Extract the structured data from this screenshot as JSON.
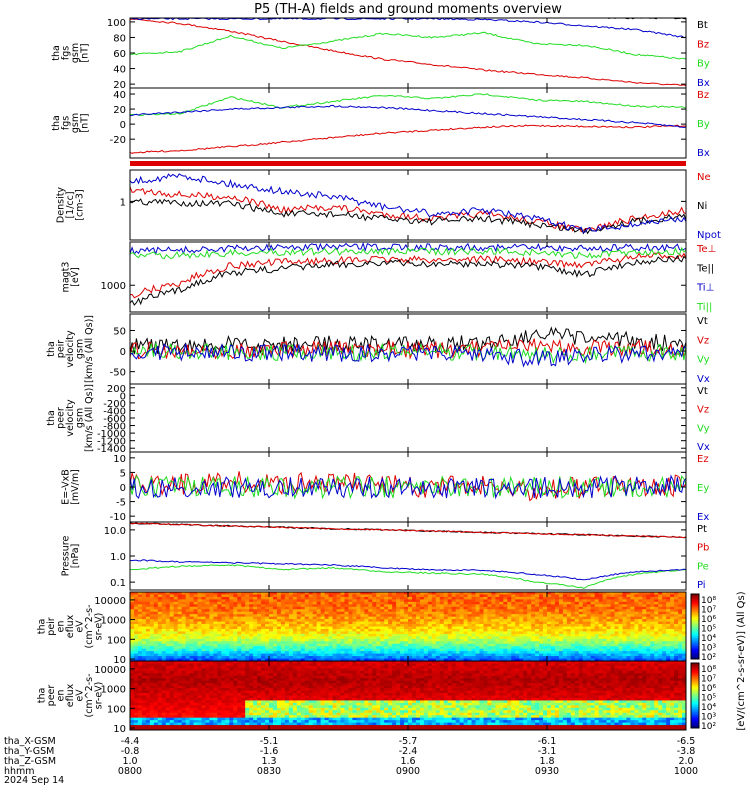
{
  "title": "P5 (TH-A) fields and ground moments overview",
  "colors": {
    "red": "#dd0000",
    "green": "#22dd22",
    "blue": "#0000cc",
    "black": "#000000"
  },
  "chart_data": [
    {
      "type": "line",
      "id": "fgs_gsm",
      "ylabel": [
        "tha",
        "fgs",
        "gsm",
        "[nT]"
      ],
      "yticks": [
        "100",
        "80",
        "60",
        "40",
        "20"
      ],
      "ylim": [
        15,
        105
      ],
      "series": [
        {
          "name": "Bt",
          "color": "black",
          "values": [
            115,
            112,
            110,
            108,
            108,
            108,
            107,
            107,
            106,
            106,
            105,
            105
          ]
        },
        {
          "name": "Bz",
          "color": "red",
          "values": [
            104,
            98,
            88,
            75,
            63,
            52,
            45,
            38,
            33,
            28,
            22,
            18
          ]
        },
        {
          "name": "By",
          "color": "green",
          "values": [
            58,
            62,
            82,
            66,
            75,
            85,
            80,
            86,
            72,
            70,
            58,
            52
          ]
        },
        {
          "name": "Bx",
          "color": "blue",
          "values": [
            104,
            104,
            104,
            104,
            104,
            104,
            104,
            103,
            100,
            95,
            90,
            80
          ]
        }
      ]
    },
    {
      "type": "line",
      "id": "fgs_gsm_zoom",
      "ylabel": [
        "tha",
        "fgs",
        "gsm",
        "[nT]"
      ],
      "yticks": [
        "40",
        "20",
        "0",
        "-20"
      ],
      "ylim": [
        -45,
        48
      ],
      "series": [
        {
          "name": "Bz",
          "color": "red",
          "values": [
            -38,
            -35,
            -30,
            -24,
            -18,
            -12,
            -8,
            -4,
            -2,
            -3,
            -4,
            -2
          ]
        },
        {
          "name": "By",
          "color": "green",
          "values": [
            12,
            14,
            36,
            22,
            30,
            38,
            34,
            40,
            32,
            30,
            24,
            22
          ]
        },
        {
          "name": "Bx",
          "color": "blue",
          "values": [
            12,
            16,
            20,
            22,
            24,
            22,
            18,
            14,
            10,
            6,
            2,
            -4
          ]
        }
      ]
    },
    {
      "type": "line",
      "id": "density",
      "ylabel": [
        "Density",
        "[1/cc]",
        "[cm-3]"
      ],
      "yticks": [
        "1"
      ],
      "series": [
        {
          "name": "Ne",
          "color": "red",
          "values": [
            1.6,
            1.3,
            1.2,
            0.7,
            0.8,
            0.6,
            0.5,
            0.6,
            0.45,
            0.3,
            0.5,
            0.7
          ]
        },
        {
          "name": "Ni",
          "color": "black",
          "values": [
            1.0,
            0.95,
            0.9,
            0.6,
            0.6,
            0.5,
            0.45,
            0.5,
            0.4,
            0.3,
            0.45,
            0.55
          ]
        },
        {
          "name": "Npot",
          "color": "blue",
          "values": [
            2.2,
            2.8,
            2.0,
            1.5,
            1.2,
            0.8,
            0.6,
            0.7,
            0.5,
            0.3,
            0.4,
            0.5
          ]
        }
      ]
    },
    {
      "type": "line",
      "id": "temperature",
      "ylabel": [
        "magt3",
        "[eV]"
      ],
      "yticks": [
        "1000"
      ],
      "series": [
        {
          "name": "Te⊥",
          "color": "red",
          "values": [
            600,
            1100,
            2500,
            3000,
            3200,
            3400,
            3300,
            3500,
            3000,
            2600,
            3800,
            4200
          ]
        },
        {
          "name": "Te||",
          "color": "black",
          "values": [
            400,
            800,
            1800,
            2200,
            2600,
            2900,
            2700,
            2800,
            2400,
            1600,
            3000,
            3500
          ]
        },
        {
          "name": "Ti⊥",
          "color": "blue",
          "values": [
            5000,
            5200,
            5600,
            6000,
            6000,
            6100,
            6000,
            6000,
            5900,
            5700,
            5900,
            6000
          ]
        },
        {
          "name": "Ti||",
          "color": "green",
          "values": [
            4000,
            4200,
            4500,
            4800,
            4900,
            5000,
            4900,
            5000,
            4700,
            4000,
            4800,
            5000
          ]
        }
      ]
    },
    {
      "type": "line",
      "id": "peir_velocity",
      "ylabel": [
        "tha",
        "peir",
        "velocity",
        "gsm",
        "[km/s (All Qs)]"
      ],
      "yticks": [
        "50",
        "0",
        "-50"
      ],
      "ylim": [
        -80,
        90
      ],
      "series": [
        {
          "name": "Vt",
          "color": "black",
          "values": [
            12,
            10,
            15,
            15,
            20,
            15,
            15,
            20,
            40,
            30,
            25,
            15
          ]
        },
        {
          "name": "Vz",
          "color": "red",
          "values": [
            2,
            2,
            3,
            4,
            5,
            4,
            3,
            5,
            10,
            8,
            6,
            4
          ]
        },
        {
          "name": "Vy",
          "color": "green",
          "values": [
            1,
            0,
            -2,
            -3,
            -4,
            -3,
            -2,
            -3,
            -10,
            -8,
            -4,
            -2
          ]
        },
        {
          "name": "Vx",
          "color": "blue",
          "values": [
            -1,
            -2,
            -3,
            -5,
            -6,
            -5,
            -4,
            -5,
            -20,
            -12,
            -6,
            -3
          ]
        }
      ]
    },
    {
      "type": "line",
      "id": "peer_velocity",
      "ylabel": [
        "tha",
        "peer",
        "velocity",
        "gsm",
        "[km/s (All Qs)]"
      ],
      "yticks": [
        "200",
        "0",
        "-200",
        "-400",
        "-600",
        "-800",
        "-1000",
        "-1200",
        "-1400"
      ],
      "ylim": [
        -1500,
        300
      ],
      "series": [
        {
          "name": "Vt",
          "color": "black",
          "values": []
        },
        {
          "name": "Vz",
          "color": "red",
          "values": []
        },
        {
          "name": "Vy",
          "color": "green",
          "values": []
        },
        {
          "name": "Vx",
          "color": "blue",
          "values": []
        }
      ]
    },
    {
      "type": "line",
      "id": "efield",
      "ylabel": [
        "E=-VxB",
        "[mV/m]"
      ],
      "yticks": [
        "10",
        "5",
        "0",
        "-5",
        "-10"
      ],
      "ylim": [
        -12,
        12
      ],
      "series": [
        {
          "name": "Ez",
          "color": "red",
          "values": [
            1,
            1,
            2,
            1,
            1,
            1,
            0,
            0,
            -1,
            0,
            1,
            0
          ]
        },
        {
          "name": "Ey",
          "color": "green",
          "values": [
            0,
            0,
            0,
            0,
            0,
            0,
            0,
            0,
            0,
            0,
            0,
            0
          ]
        },
        {
          "name": "Ex",
          "color": "blue",
          "values": [
            0,
            0,
            0,
            0,
            0,
            0,
            0,
            0,
            0,
            0,
            0,
            0
          ]
        }
      ]
    },
    {
      "type": "line",
      "id": "pressure",
      "ylabel": [
        "Pressure",
        "[nPa]"
      ],
      "yticks": [
        "10.0",
        "1.0",
        "0.1"
      ],
      "ylim": [
        0.05,
        20
      ],
      "yscale": "log",
      "series": [
        {
          "name": "Pt",
          "color": "black",
          "values": [
            18,
            16,
            14,
            12.5,
            11,
            10,
            9,
            8,
            7.2,
            6.5,
            5.8,
            5.2
          ]
        },
        {
          "name": "Pb",
          "color": "red",
          "values": [
            18,
            16,
            14,
            12.5,
            11,
            10,
            9,
            8,
            7.2,
            6.5,
            5.8,
            5.2
          ]
        },
        {
          "name": "Pe",
          "color": "green",
          "values": [
            0.3,
            0.4,
            0.45,
            0.3,
            0.35,
            0.25,
            0.22,
            0.2,
            0.1,
            0.06,
            0.2,
            0.3
          ]
        },
        {
          "name": "Pi",
          "color": "blue",
          "values": [
            0.7,
            0.6,
            0.55,
            0.5,
            0.45,
            0.35,
            0.3,
            0.28,
            0.2,
            0.12,
            0.25,
            0.3
          ]
        }
      ]
    },
    {
      "type": "heatmap",
      "id": "peir_en_eflux",
      "ylabel": [
        "tha",
        "peir",
        "en",
        "eflux",
        "eV",
        "(cm^2-s-",
        "sr-eV)"
      ],
      "yticks": [
        "10000",
        "1000",
        "100",
        "10"
      ],
      "yscale": "log",
      "colorbar_ticks": [
        "10⁸",
        "10⁷",
        "10⁶",
        "10⁵",
        "10⁴",
        "10³",
        "10²"
      ]
    },
    {
      "type": "heatmap",
      "id": "peer_en_eflux",
      "ylabel": [
        "tha",
        "peer",
        "en",
        "eflux",
        "eV",
        "(cm^2-s-",
        "sr-eV)"
      ],
      "yticks": [
        "10000",
        "1000",
        "100",
        "10"
      ],
      "yscale": "log",
      "colorbar_ticks": [
        "10⁸",
        "10⁷",
        "10⁶",
        "10⁵",
        "10⁴",
        "10³",
        "10²"
      ],
      "colorbar_label": "[eV/(cm^2-s-sr-eV)] (All Qs)"
    }
  ],
  "xaxis": {
    "rows": [
      {
        "label": "tha_X-GSM",
        "values": [
          "-4.4",
          "-5.1",
          "-5.7",
          "-6.1",
          "-6.5"
        ]
      },
      {
        "label": "tha_Y-GSM",
        "values": [
          "-0.8",
          "-1.6",
          "-2.4",
          "-3.1",
          "-3.8"
        ]
      },
      {
        "label": "tha_Z-GSM",
        "values": [
          "1.0",
          "1.3",
          "1.6",
          "1.8",
          "2.0"
        ]
      },
      {
        "label": "hhmm",
        "values": [
          "0800",
          "0830",
          "0900",
          "0930",
          "1000"
        ]
      }
    ],
    "date": "2024 Sep 14"
  }
}
